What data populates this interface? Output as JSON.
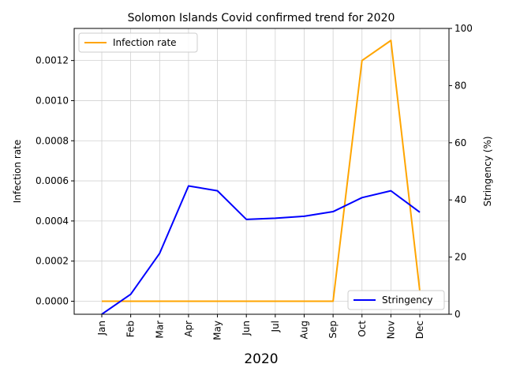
{
  "chart_data": {
    "type": "line",
    "title": "Solomon Islands Covid confirmed trend for 2020",
    "xlabel": "2020",
    "ylabel_left": "Infection rate",
    "ylabel_right": "Stringency (%)",
    "categories": [
      "Jan",
      "Feb",
      "Mar",
      "Apr",
      "May",
      "Jun",
      "Jul",
      "Aug",
      "Sep",
      "Oct",
      "Nov",
      "Dec"
    ],
    "ylim_left": [
      -6.5e-05,
      0.00136
    ],
    "ylim_right": [
      0,
      100
    ],
    "yticks_left": [
      0,
      0.0002,
      0.0004,
      0.0006,
      0.0008,
      0.001,
      0.0012
    ],
    "yticks_left_labels": [
      "0.0000",
      "0.0002",
      "0.0004",
      "0.0006",
      "0.0008",
      "0.0010",
      "0.0012"
    ],
    "yticks_right": [
      0,
      20,
      40,
      60,
      80,
      100
    ],
    "yticks_right_labels": [
      "0",
      "20",
      "40",
      "60",
      "80",
      "100"
    ],
    "grid": true,
    "series": [
      {
        "name": "Infection rate",
        "axis": "left",
        "color": "#ffa500",
        "values": [
          0,
          0,
          0,
          0,
          0,
          0,
          0,
          0,
          0,
          0.0012,
          0.0013,
          5e-05
        ],
        "legend_position": "top-left"
      },
      {
        "name": "Stringency",
        "axis": "right",
        "color": "#0000ff",
        "values": [
          0,
          7,
          21.3,
          44.9,
          43.2,
          33.2,
          33.6,
          34.3,
          35.9,
          40.8,
          43.2,
          35.7
        ],
        "legend_position": "bottom-right"
      }
    ]
  }
}
